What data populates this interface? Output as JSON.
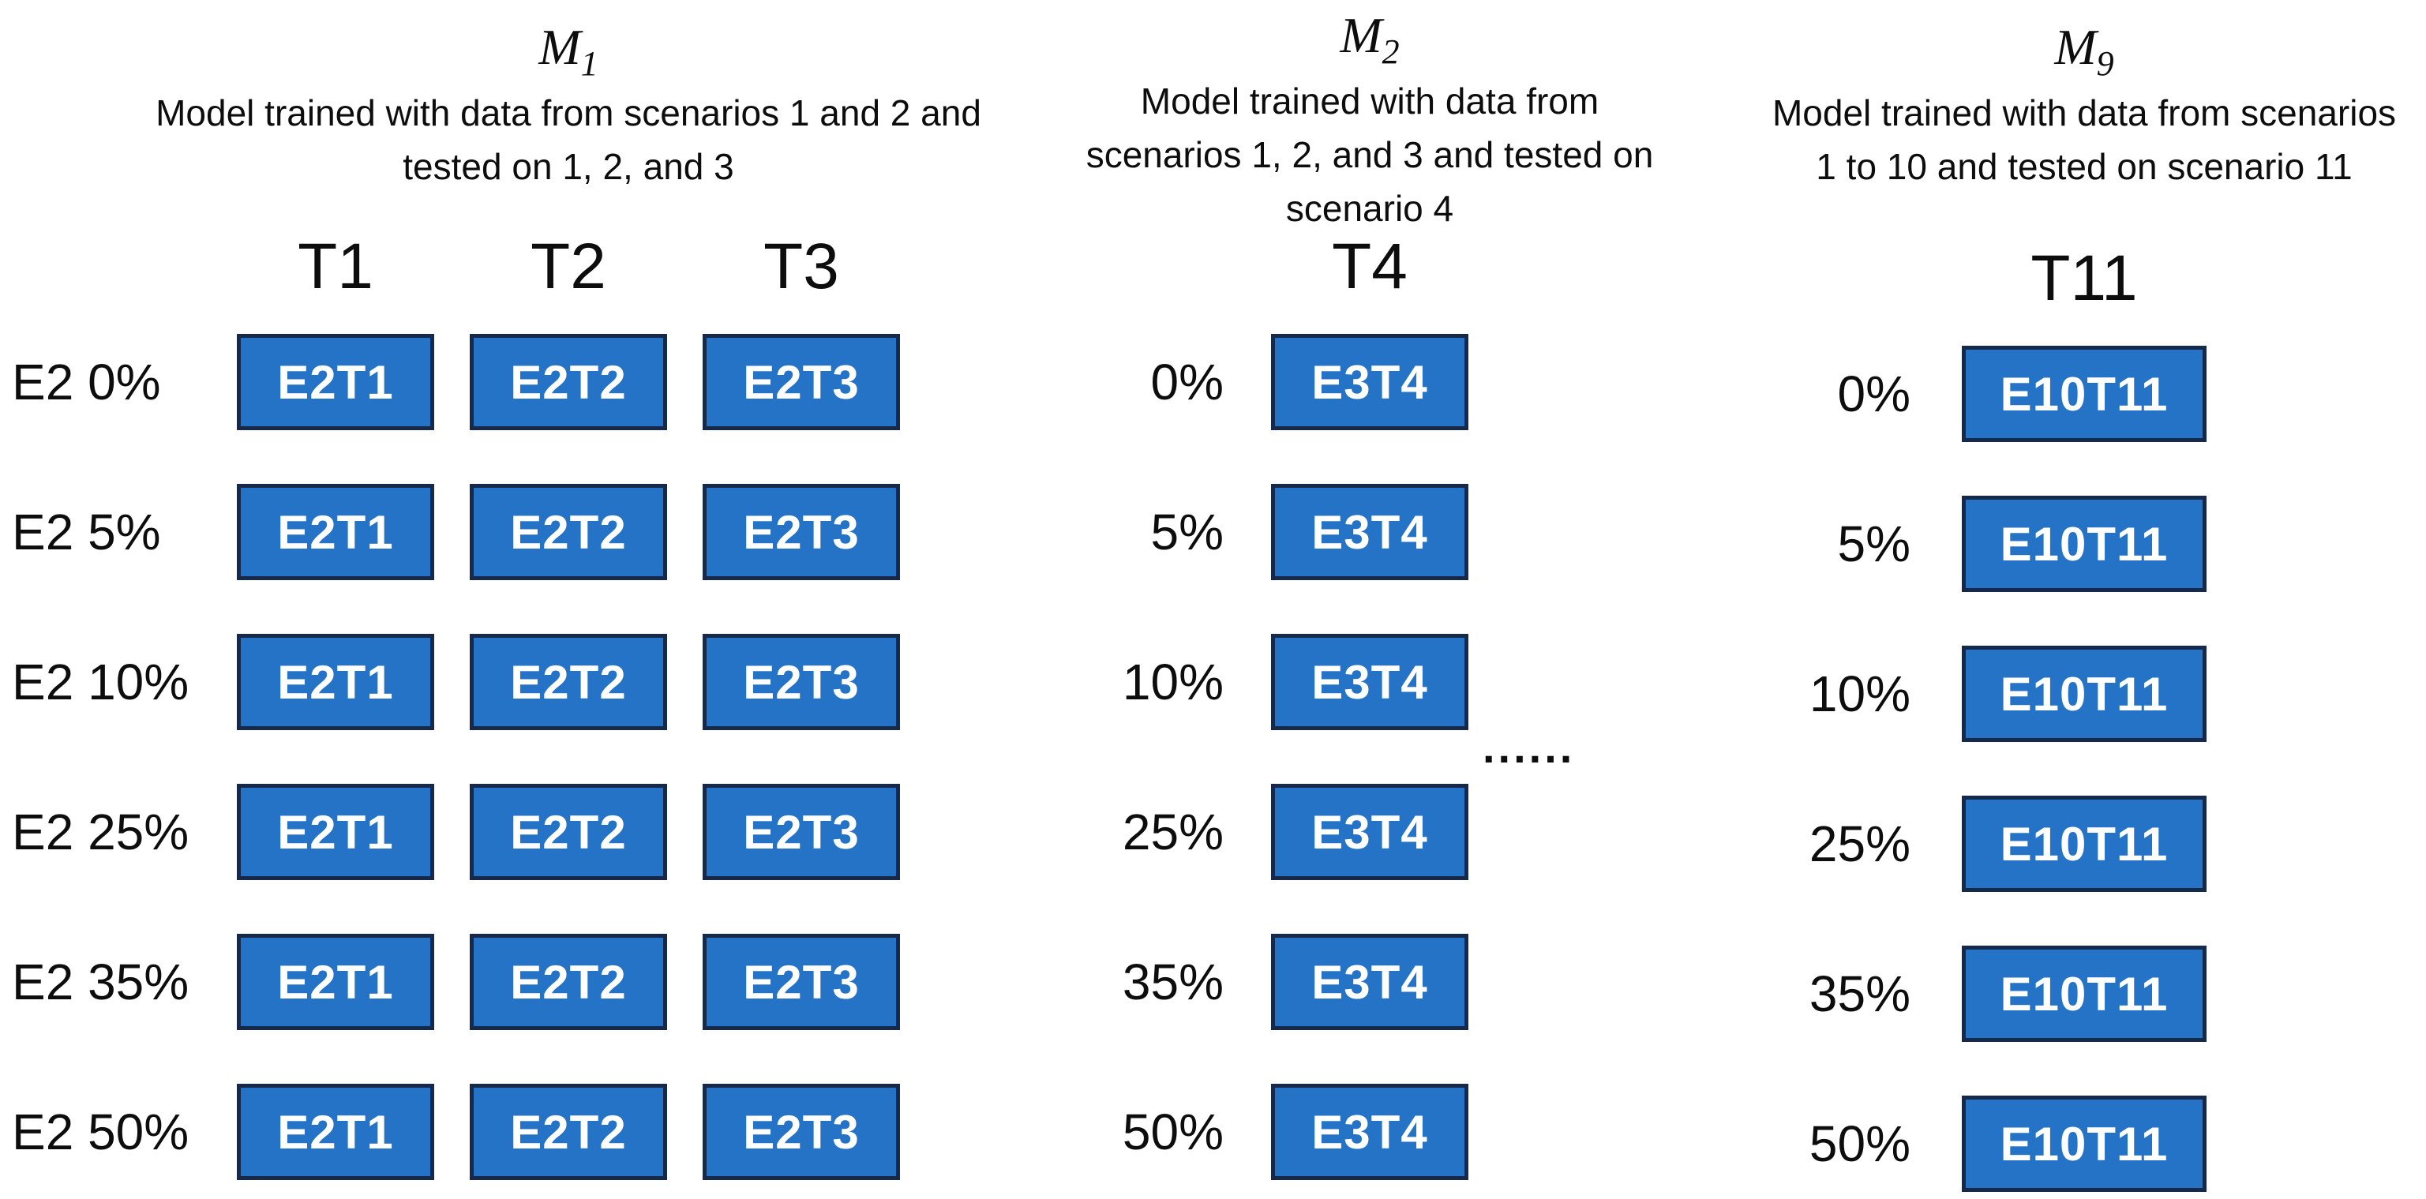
{
  "figure": {
    "background": "#ffffff"
  },
  "colors": {
    "box_fill": "#2573C6",
    "box_border": "#16294B",
    "box_text": "#ffffff",
    "text": "#0d0d0d"
  },
  "groups": [
    {
      "model": {
        "letter": "M",
        "subscript": "1"
      },
      "description_lines": [
        "Model trained with data from scenarios 1 and 2 and",
        "tested on 1, 2, and 3"
      ],
      "test_headers": [
        "T1",
        "T2",
        "T3"
      ],
      "rows": [
        {
          "label": "E2 0%",
          "boxes": [
            "E2T1",
            "E2T2",
            "E2T3"
          ]
        },
        {
          "label": "E2 5%",
          "boxes": [
            "E2T1",
            "E2T2",
            "E2T3"
          ]
        },
        {
          "label": "E2 10%",
          "boxes": [
            "E2T1",
            "E2T2",
            "E2T3"
          ]
        },
        {
          "label": "E2 25%",
          "boxes": [
            "E2T1",
            "E2T2",
            "E2T3"
          ]
        },
        {
          "label": "E2 35%",
          "boxes": [
            "E2T1",
            "E2T2",
            "E2T3"
          ]
        },
        {
          "label": "E2 50%",
          "boxes": [
            "E2T1",
            "E2T2",
            "E2T3"
          ]
        }
      ]
    },
    {
      "model": {
        "letter": "M",
        "subscript": "2"
      },
      "description_lines": [
        "Model trained with data from",
        "scenarios 1, 2, and 3 and tested on",
        "scenario 4"
      ],
      "test_headers": [
        "T4"
      ],
      "rows": [
        {
          "label": "0%",
          "boxes": [
            "E3T4"
          ]
        },
        {
          "label": "5%",
          "boxes": [
            "E3T4"
          ]
        },
        {
          "label": "10%",
          "boxes": [
            "E3T4"
          ]
        },
        {
          "label": "25%",
          "boxes": [
            "E3T4"
          ]
        },
        {
          "label": "35%",
          "boxes": [
            "E3T4"
          ]
        },
        {
          "label": "50%",
          "boxes": [
            "E3T4"
          ]
        }
      ],
      "ellipsis": "......"
    },
    {
      "model": {
        "letter": "M",
        "subscript": "9"
      },
      "description_lines": [
        "Model trained with data from scenarios",
        "1 to 10 and tested on scenario 11"
      ],
      "test_headers": [
        "T11"
      ],
      "rows": [
        {
          "label": "0%",
          "boxes": [
            "E10T11"
          ]
        },
        {
          "label": "5%",
          "boxes": [
            "E10T11"
          ]
        },
        {
          "label": "10%",
          "boxes": [
            "E10T11"
          ]
        },
        {
          "label": "25%",
          "boxes": [
            "E10T11"
          ]
        },
        {
          "label": "35%",
          "boxes": [
            "E10T11"
          ]
        },
        {
          "label": "50%",
          "boxes": [
            "E10T11"
          ]
        }
      ]
    }
  ]
}
